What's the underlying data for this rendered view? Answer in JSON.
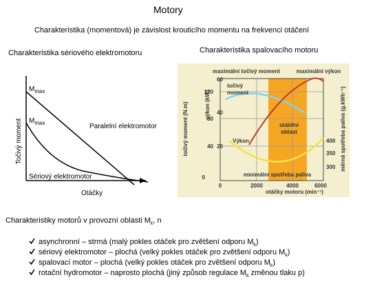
{
  "header": {
    "title": "Motory",
    "subtitle": "Charakteristika (momentová) je závislost krouticího momentu na frekvenci otáčení"
  },
  "left_figure": {
    "caption": "Charakteristika sériového elektromotoru",
    "y_label": "Točivý moment",
    "mmax": {
      "symbol": "M",
      "sub": "max"
    },
    "parallel_label": "Paralelní elektromotor",
    "series_label": "Sériový elektromotor",
    "x_label": "Otáčky"
  },
  "right_figure": {
    "caption": "Charakteristika spalovacího motoru",
    "torque_ticks": [
      "120",
      "80",
      "40",
      "0"
    ],
    "power_ticks": [
      "60",
      "40",
      "20"
    ],
    "consumption_ticks": [
      "400",
      "350",
      "300"
    ],
    "rpm_ticks": [
      "0",
      "2000",
      "4000",
      "6000"
    ],
    "max_torque": "maximální točivý moment",
    "max_power": "maximální výkon",
    "torque_label": [
      "točivý",
      "moment"
    ],
    "power_label": "Výkon",
    "stable_label": [
      "stabilní",
      "oblast"
    ],
    "min_consumption": "minimální spotřeba paliva",
    "x_label": "otáčky motoru (min⁻¹)",
    "torque_axis": "točivý moment (N.m)",
    "power_axis": "výkon (kW)",
    "consumption_axis": "měrná spotřeba paliva (g.kWh⁻¹)"
  },
  "section": {
    "heading": {
      "before": "Charakteristiky motorů v provozní oblasti M",
      "sub": "k",
      "after": ", n"
    },
    "items": [
      {
        "before": "asynchronní – strmá (malý pokles otáček pro zvětšení odporu M",
        "sub": "k",
        "after": ")"
      },
      {
        "before": "sériový elektromotor – plochá (velký pokles otáček pro zvětšení odporu M",
        "sub": "k",
        "after": ")"
      },
      {
        "before": "spalovací motor – plochá (velký pokles otáček pro zvětšení odporu M",
        "sub": "k",
        "after": ")"
      },
      {
        "before": "rotační hydromotor – naprosto plochá (jiný způsob regulace M",
        "sub": "k",
        "after": " změnou tlaku p)"
      }
    ]
  }
}
